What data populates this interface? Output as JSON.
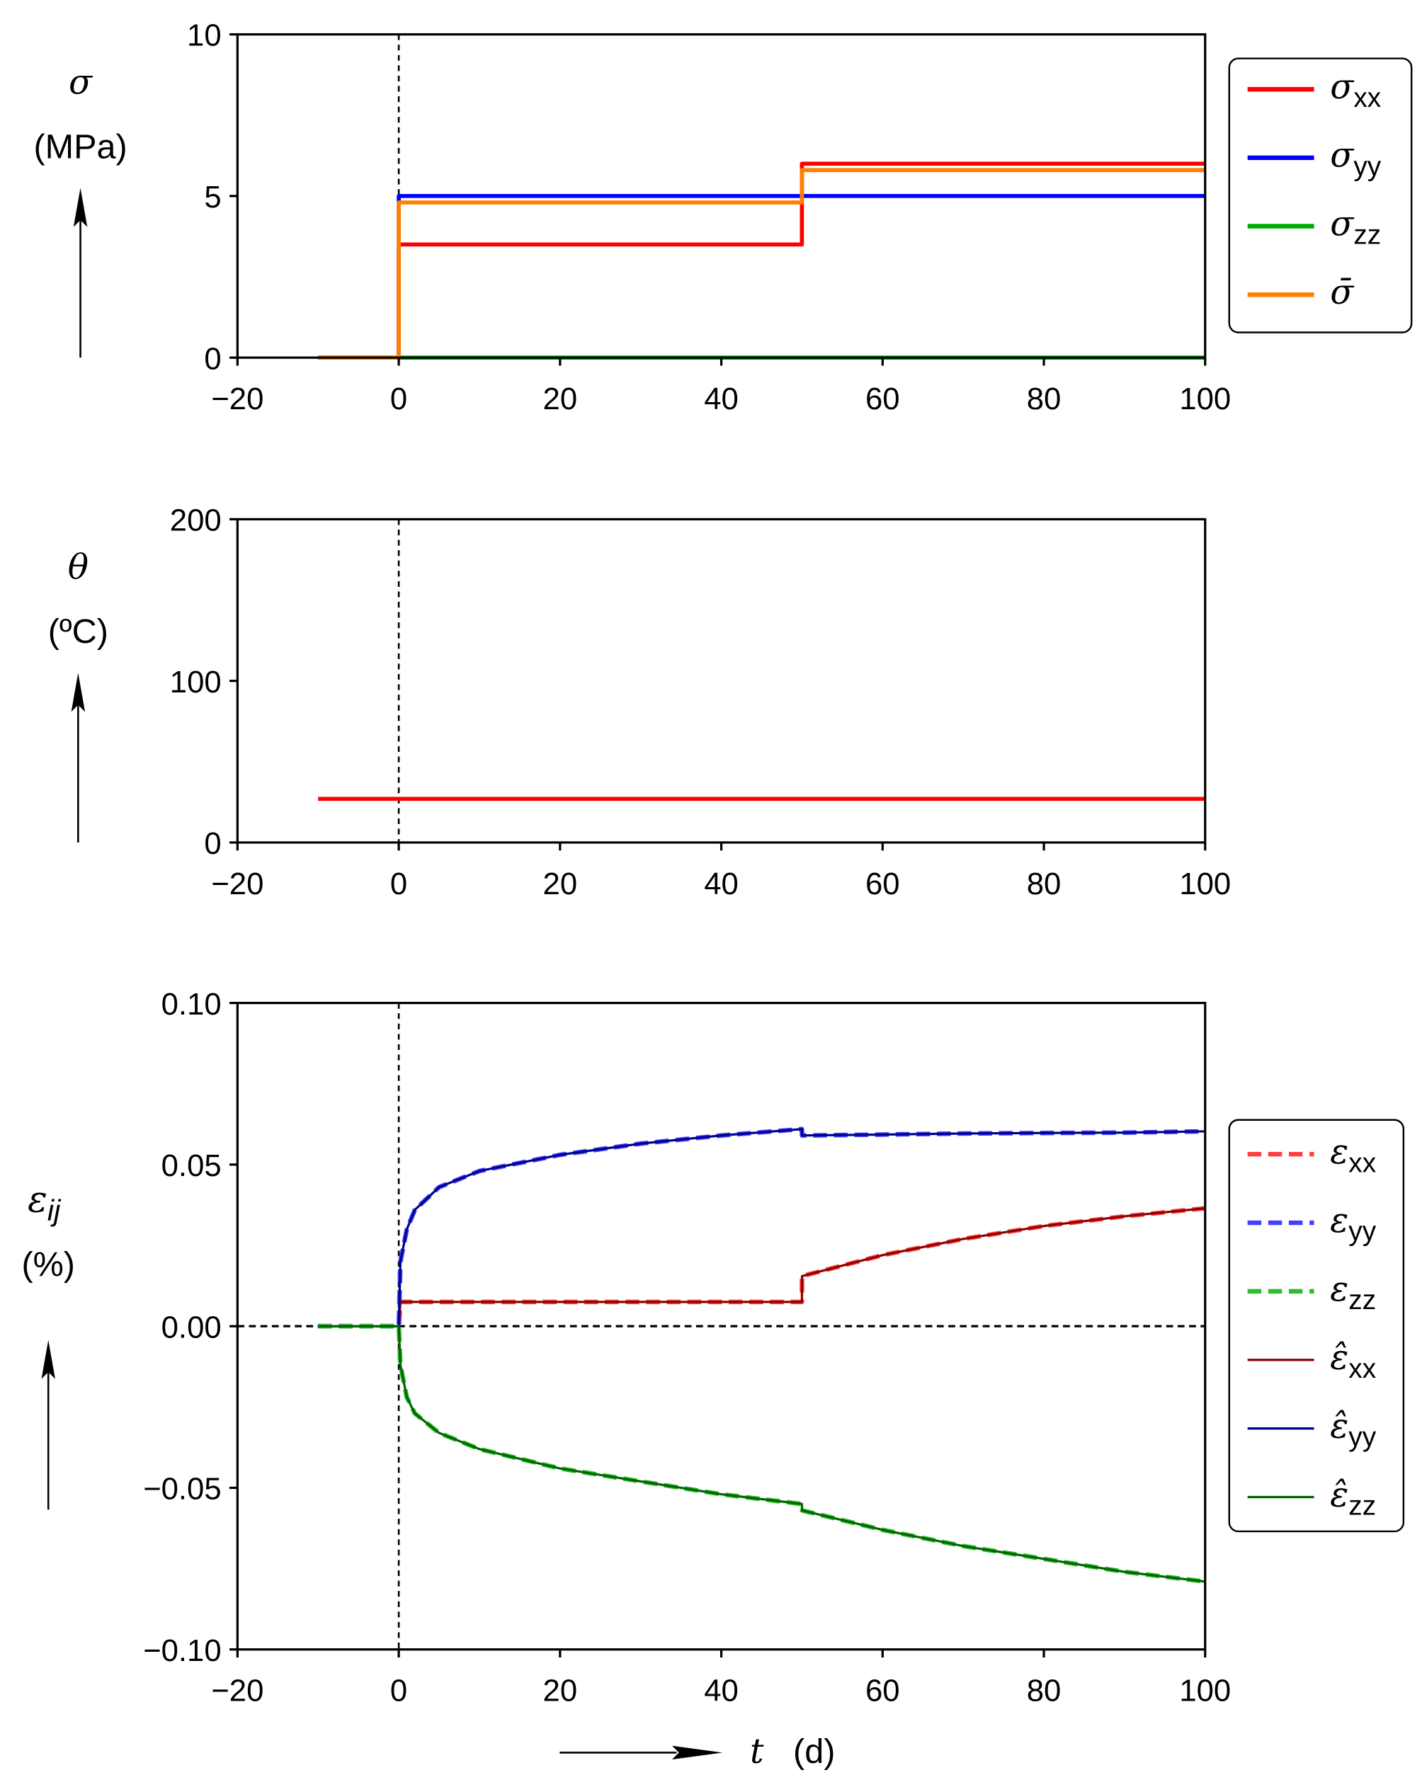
{
  "chart_data": [
    {
      "type": "line",
      "ylabel": {
        "symbol": "σ",
        "unit": "(MPa)"
      },
      "xlim": [
        -20,
        100
      ],
      "ylim": [
        0,
        10
      ],
      "xticks": [
        "−20",
        "0",
        "20",
        "40",
        "60",
        "80",
        "100"
      ],
      "xtick_values": [
        -20,
        0,
        20,
        40,
        60,
        80,
        100
      ],
      "yticks": [
        "0",
        "5",
        "10"
      ],
      "ytick_values": [
        0,
        5,
        10
      ],
      "vline_x": 0,
      "legend": "right",
      "x": [
        -10,
        0,
        0,
        50,
        50,
        100
      ],
      "series": [
        {
          "symbol": "σ",
          "sub": "xx",
          "color": "#ff0000",
          "style": "solid",
          "values": [
            0,
            0,
            3.5,
            3.5,
            6,
            6
          ]
        },
        {
          "symbol": "σ",
          "sub": "yy",
          "color": "#0000ff",
          "style": "solid",
          "values": [
            0,
            0,
            5,
            5,
            5,
            5
          ]
        },
        {
          "symbol": "σ",
          "sub": "zz",
          "color": "#00aa00",
          "style": "solid",
          "values": [
            0,
            0,
            0,
            0,
            0,
            0
          ]
        },
        {
          "symbol": "σ̄",
          "sub": "",
          "color": "#ff8000",
          "style": "solid",
          "values": [
            0,
            0,
            4.8,
            4.8,
            5.8,
            5.8
          ]
        }
      ]
    },
    {
      "type": "line",
      "ylabel": {
        "symbol": "θ",
        "unit": "(ºC)"
      },
      "xlim": [
        -20,
        100
      ],
      "ylim": [
        0,
        200
      ],
      "xticks": [
        "−20",
        "0",
        "20",
        "40",
        "60",
        "80",
        "100"
      ],
      "xtick_values": [
        -20,
        0,
        20,
        40,
        60,
        80,
        100
      ],
      "yticks": [
        "0",
        "100",
        "200"
      ],
      "ytick_values": [
        0,
        100,
        200
      ],
      "vline_x": 0,
      "x": [
        -10,
        100
      ],
      "series": [
        {
          "color": "#ff0000",
          "style": "solid",
          "values": [
            27,
            27
          ]
        }
      ]
    },
    {
      "type": "line",
      "ylabel": {
        "symbol": "ε",
        "sub": "ij",
        "unit": "(%)"
      },
      "xlabel": {
        "symbol": "t",
        "unit": "(d)"
      },
      "xlim": [
        -20,
        100
      ],
      "ylim": [
        -0.1,
        0.1
      ],
      "xticks": [
        "−20",
        "0",
        "20",
        "40",
        "60",
        "80",
        "100"
      ],
      "xtick_values": [
        -20,
        0,
        20,
        40,
        60,
        80,
        100
      ],
      "yticks": [
        "−0.10",
        "−0.05",
        "0.00",
        "0.05",
        "0.10"
      ],
      "ytick_values": [
        -0.1,
        -0.05,
        0,
        0.05,
        0.1
      ],
      "vline_x": 0,
      "hline_y": 0,
      "legend": "right",
      "x": [
        -10,
        0,
        0.2,
        1,
        2,
        5,
        10,
        20,
        30,
        40,
        50,
        50.01,
        60,
        70,
        80,
        90,
        100
      ],
      "series": [
        {
          "symbol": "ε",
          "sub": "xx",
          "color": "#ff4040",
          "style": "dashed",
          "values": [
            0,
            0,
            0.0075,
            0.0075,
            0.0075,
            0.0075,
            0.0075,
            0.0075,
            0.0075,
            0.0075,
            0.0075,
            0.0155,
            0.022,
            0.027,
            0.031,
            0.034,
            0.0365
          ]
        },
        {
          "symbol": "ε",
          "sub": "yy",
          "color": "#4040ff",
          "style": "dashed",
          "values": [
            0,
            0,
            0.02,
            0.03,
            0.036,
            0.043,
            0.048,
            0.053,
            0.0565,
            0.059,
            0.061,
            0.059,
            0.0593,
            0.0596,
            0.0598,
            0.0599,
            0.0603
          ]
        },
        {
          "symbol": "ε",
          "sub": "zz",
          "color": "#30bb30",
          "style": "dashed",
          "values": [
            0,
            0,
            -0.012,
            -0.022,
            -0.027,
            -0.033,
            -0.038,
            -0.044,
            -0.048,
            -0.052,
            -0.055,
            -0.057,
            -0.063,
            -0.068,
            -0.072,
            -0.076,
            -0.079
          ]
        },
        {
          "symbol": "ε̂",
          "sub": "xx",
          "color": "#8b0000",
          "style": "solid",
          "values": [
            0,
            0,
            0.0075,
            0.0075,
            0.0075,
            0.0075,
            0.0075,
            0.0075,
            0.0075,
            0.0075,
            0.0075,
            0.0155,
            0.022,
            0.027,
            0.031,
            0.034,
            0.0365
          ]
        },
        {
          "symbol": "ε̂",
          "sub": "yy",
          "color": "#000090",
          "style": "solid",
          "values": [
            0,
            0,
            0.02,
            0.03,
            0.036,
            0.043,
            0.048,
            0.053,
            0.0565,
            0.059,
            0.061,
            0.059,
            0.0593,
            0.0596,
            0.0598,
            0.0599,
            0.0603
          ]
        },
        {
          "symbol": "ε̂",
          "sub": "zz",
          "color": "#006400",
          "style": "solid",
          "values": [
            0,
            0,
            -0.012,
            -0.022,
            -0.027,
            -0.033,
            -0.038,
            -0.044,
            -0.048,
            -0.052,
            -0.055,
            -0.057,
            -0.063,
            -0.068,
            -0.072,
            -0.076,
            -0.079
          ]
        }
      ]
    }
  ]
}
